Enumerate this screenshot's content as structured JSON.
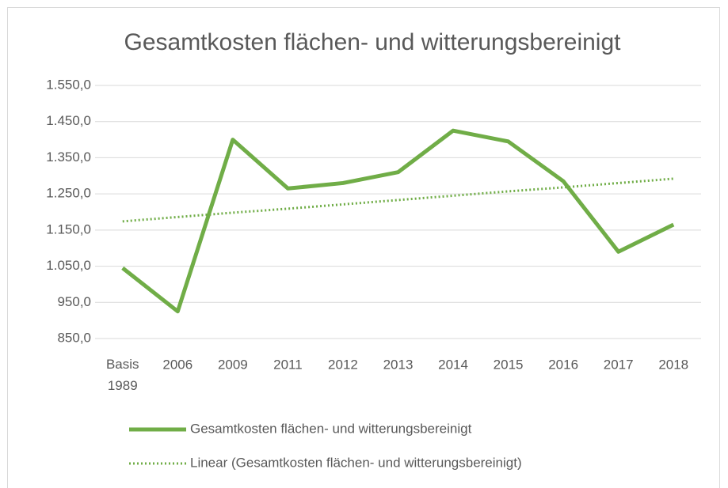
{
  "chart_data": {
    "type": "line",
    "title": "Gesamtkosten flächen- und witterungsbereinigt",
    "categories": [
      "Basis 1989",
      "2006",
      "2009",
      "2011",
      "2012",
      "2013",
      "2014",
      "2015",
      "2016",
      "2017",
      "2018"
    ],
    "series": [
      {
        "name": "Gesamtkosten flächen- und witterungsbereinigt",
        "color": "#70ad47",
        "dash": "solid",
        "values": [
          1045,
          925,
          1400,
          1265,
          1280,
          1310,
          1425,
          1395,
          1285,
          1090,
          1165
        ]
      },
      {
        "name": "Linear (Gesamtkosten flächen- und witterungsbereinigt)",
        "color": "#70ad47",
        "dash": "dotted",
        "values": [
          1174,
          1186,
          1198,
          1209,
          1221,
          1233,
          1245,
          1257,
          1268,
          1280,
          1292
        ]
      }
    ],
    "ylim": [
      850,
      1550
    ],
    "yticks": [
      {
        "value": 850,
        "label": "850,0"
      },
      {
        "value": 950,
        "label": "950,0"
      },
      {
        "value": 1050,
        "label": "1.050,0"
      },
      {
        "value": 1150,
        "label": "1.150,0"
      },
      {
        "value": 1250,
        "label": "1.250,0"
      },
      {
        "value": 1350,
        "label": "1.350,0"
      },
      {
        "value": 1450,
        "label": "1.450,0"
      },
      {
        "value": 1550,
        "label": "1.550,0"
      }
    ],
    "grid": true,
    "legend": "bottom"
  }
}
